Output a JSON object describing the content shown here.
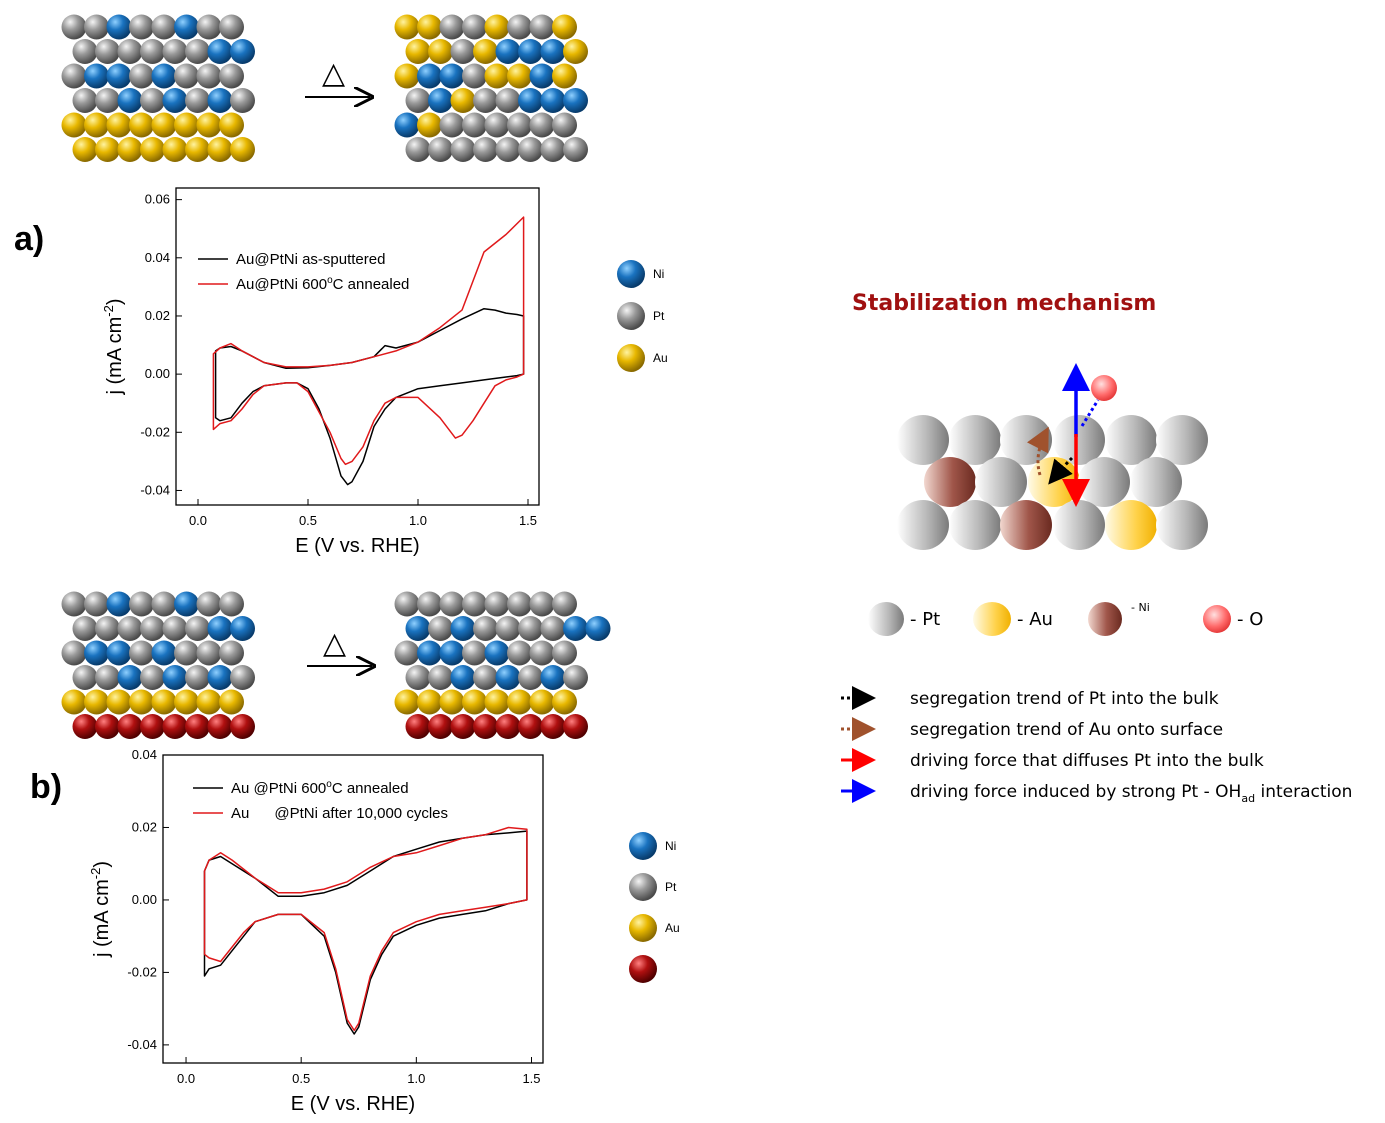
{
  "colors": {
    "ni": "#1a73c0",
    "pt": "#9a9a9a",
    "au": "#e8b800",
    "red_layer": "#b01010",
    "series_black": "#000000",
    "series_red": "#e0191b",
    "mechanism_title": "#a01010",
    "arrow_black": "#000000",
    "arrow_brown": "#a0522d",
    "arrow_red": "#ff0000",
    "arrow_blue": "#0000ff"
  },
  "labels": {
    "panel_a": "a)",
    "panel_b": "b)",
    "heat_symbol": "△"
  },
  "legend_atoms_a": [
    {
      "key": "ni",
      "label": "Ni"
    },
    {
      "key": "pt",
      "label": "Pt"
    },
    {
      "key": "au",
      "label": "Au"
    }
  ],
  "legend_atoms_b": [
    {
      "key": "ni",
      "label": "Ni"
    },
    {
      "key": "pt",
      "label": "Pt"
    },
    {
      "key": "au",
      "label": "Au"
    },
    {
      "key": "red_layer",
      "label": ""
    }
  ],
  "mechanism": {
    "title": "Stabilization mechanism",
    "atom_legend": [
      {
        "key": "pt",
        "label": "- Pt"
      },
      {
        "key": "au",
        "label": "- Au"
      },
      {
        "key": "ni",
        "label": "- Ni"
      },
      {
        "key": "o",
        "label": "- O"
      }
    ],
    "arrow_legend": [
      {
        "style": "black-dotted",
        "text": "segregation trend of Pt into the bulk"
      },
      {
        "style": "brown-dotted",
        "text": "segregation trend of Au onto surface"
      },
      {
        "style": "red",
        "text": "driving force that diffuses Pt into the bulk"
      },
      {
        "style": "blue",
        "text": "driving force induced by strong Pt - OH",
        "sub": "ad",
        "tail": " interaction"
      }
    ]
  },
  "chart_data": [
    {
      "type": "line",
      "xlabel": "E (V vs. RHE)",
      "ylabel": "j (mA cm",
      "ylabel_sup": "-2",
      "ylabel_tail": ")",
      "xlim": [
        -0.1,
        1.55
      ],
      "ylim": [
        -0.045,
        0.064
      ],
      "xticks": [
        "0.0",
        "0.5",
        "1.0",
        "1.5"
      ],
      "xtick_values": [
        0.0,
        0.5,
        1.0,
        1.5
      ],
      "yticks": [
        "-0.04",
        "-0.02",
        "0.00",
        "0.02",
        "0.04",
        "0.06"
      ],
      "ytick_values": [
        -0.04,
        -0.02,
        0.0,
        0.02,
        0.04,
        0.06
      ],
      "series": [
        {
          "name": "Au@PtNi as-sputtered",
          "color": "#000000",
          "x": [
            0.08,
            0.08,
            0.1,
            0.15,
            0.2,
            0.3,
            0.4,
            0.5,
            0.6,
            0.7,
            0.8,
            0.85,
            0.9,
            1.0,
            1.1,
            1.2,
            1.3,
            1.35,
            1.4,
            1.45,
            1.48,
            1.48,
            1.45,
            1.4,
            1.3,
            1.2,
            1.1,
            1.0,
            0.9,
            0.85,
            0.8,
            0.75,
            0.7,
            0.68,
            0.65,
            0.6,
            0.55,
            0.5,
            0.45,
            0.4,
            0.3,
            0.25,
            0.2,
            0.15,
            0.1,
            0.08
          ],
          "y": [
            -0.015,
            0.008,
            0.009,
            0.0095,
            0.008,
            0.004,
            0.002,
            0.0022,
            0.003,
            0.004,
            0.006,
            0.0098,
            0.009,
            0.011,
            0.015,
            0.019,
            0.0225,
            0.022,
            0.021,
            0.0205,
            0.02,
            0.0,
            -0.0005,
            -0.001,
            -0.002,
            -0.003,
            -0.004,
            -0.005,
            -0.008,
            -0.012,
            -0.018,
            -0.03,
            -0.037,
            -0.038,
            -0.035,
            -0.022,
            -0.012,
            -0.005,
            -0.003,
            -0.003,
            -0.004,
            -0.006,
            -0.01,
            -0.015,
            -0.016,
            -0.015
          ]
        },
        {
          "name": "Au@PtNi 600°C annealed",
          "color": "#e0191b",
          "x": [
            0.07,
            0.07,
            0.1,
            0.15,
            0.2,
            0.3,
            0.4,
            0.5,
            0.6,
            0.7,
            0.8,
            0.9,
            1.0,
            1.1,
            1.2,
            1.3,
            1.4,
            1.48,
            1.48,
            1.45,
            1.4,
            1.35,
            1.3,
            1.25,
            1.2,
            1.17,
            1.1,
            1.0,
            0.9,
            0.85,
            0.8,
            0.75,
            0.7,
            0.67,
            0.65,
            0.6,
            0.5,
            0.45,
            0.4,
            0.3,
            0.25,
            0.2,
            0.15,
            0.1,
            0.07
          ],
          "y": [
            -0.019,
            0.007,
            0.009,
            0.0105,
            0.008,
            0.004,
            0.0025,
            0.0025,
            0.003,
            0.004,
            0.006,
            0.008,
            0.011,
            0.016,
            0.022,
            0.042,
            0.048,
            0.054,
            0.0,
            -0.001,
            -0.002,
            -0.004,
            -0.01,
            -0.016,
            -0.021,
            -0.022,
            -0.015,
            -0.008,
            -0.008,
            -0.01,
            -0.016,
            -0.025,
            -0.03,
            -0.031,
            -0.029,
            -0.02,
            -0.006,
            -0.003,
            -0.003,
            -0.004,
            -0.007,
            -0.012,
            -0.016,
            -0.017,
            -0.019
          ]
        }
      ]
    },
    {
      "type": "line",
      "xlabel": "E (V vs. RHE)",
      "ylabel": "j (mA cm",
      "ylabel_sup": "-2",
      "ylabel_tail": ")",
      "xlim": [
        -0.1,
        1.55
      ],
      "ylim": [
        -0.045,
        0.04
      ],
      "xticks": [
        "0.0",
        "0.5",
        "1.0",
        "1.5"
      ],
      "xtick_values": [
        0.0,
        0.5,
        1.0,
        1.5
      ],
      "yticks": [
        "-0.04",
        "-0.02",
        "0.00",
        "0.02",
        "0.04"
      ],
      "ytick_values": [
        -0.04,
        -0.02,
        0.0,
        0.02,
        0.04
      ],
      "series": [
        {
          "name": "Au      @PtNi 600°C annealed",
          "color": "#000000",
          "x": [
            0.08,
            0.08,
            0.1,
            0.15,
            0.2,
            0.3,
            0.4,
            0.5,
            0.6,
            0.7,
            0.8,
            0.9,
            1.0,
            1.1,
            1.2,
            1.3,
            1.4,
            1.48,
            1.48,
            1.4,
            1.3,
            1.2,
            1.1,
            1.0,
            0.9,
            0.85,
            0.8,
            0.75,
            0.73,
            0.7,
            0.65,
            0.6,
            0.5,
            0.4,
            0.3,
            0.25,
            0.2,
            0.15,
            0.1,
            0.08
          ],
          "y": [
            -0.021,
            0.008,
            0.011,
            0.012,
            0.01,
            0.006,
            0.001,
            0.001,
            0.002,
            0.004,
            0.008,
            0.012,
            0.014,
            0.016,
            0.017,
            0.018,
            0.0185,
            0.019,
            0.0,
            -0.001,
            -0.003,
            -0.004,
            -0.005,
            -0.007,
            -0.01,
            -0.015,
            -0.022,
            -0.035,
            -0.037,
            -0.034,
            -0.02,
            -0.01,
            -0.004,
            -0.004,
            -0.006,
            -0.01,
            -0.014,
            -0.018,
            -0.019,
            -0.021
          ]
        },
        {
          "name": "Au      @PtNi after 10,000 cycles",
          "color": "#e0191b",
          "x": [
            0.08,
            0.08,
            0.1,
            0.15,
            0.2,
            0.3,
            0.4,
            0.5,
            0.6,
            0.7,
            0.8,
            0.9,
            1.0,
            1.1,
            1.2,
            1.3,
            1.4,
            1.48,
            1.48,
            1.4,
            1.3,
            1.2,
            1.1,
            1.0,
            0.9,
            0.85,
            0.8,
            0.75,
            0.73,
            0.7,
            0.65,
            0.6,
            0.5,
            0.4,
            0.3,
            0.25,
            0.2,
            0.15,
            0.1,
            0.08
          ],
          "y": [
            -0.015,
            0.008,
            0.011,
            0.013,
            0.011,
            0.006,
            0.002,
            0.002,
            0.003,
            0.005,
            0.009,
            0.012,
            0.013,
            0.015,
            0.017,
            0.018,
            0.02,
            0.0195,
            0.0,
            -0.001,
            -0.002,
            -0.003,
            -0.004,
            -0.006,
            -0.009,
            -0.014,
            -0.021,
            -0.034,
            -0.036,
            -0.033,
            -0.019,
            -0.009,
            -0.004,
            -0.004,
            -0.006,
            -0.009,
            -0.013,
            -0.017,
            -0.016,
            -0.015
          ]
        }
      ]
    }
  ]
}
